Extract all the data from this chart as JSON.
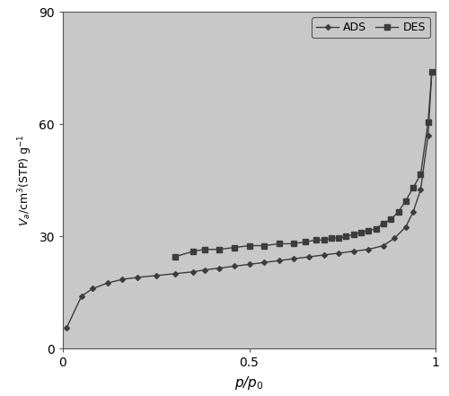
{
  "title": "",
  "xlabel": "$p$/$p_0$",
  "ylabel": "$V_a$/cm$^3$(STP) g$^{-1}$",
  "xlim": [
    0,
    1.0
  ],
  "ylim": [
    0,
    90
  ],
  "yticks": [
    0,
    30,
    60,
    90
  ],
  "xticks": [
    0,
    0.5,
    1
  ],
  "xtick_labels": [
    "0",
    "0.5",
    "1"
  ],
  "background_color": "#c8c8c8",
  "outer_color": "#ffffff",
  "line_color": "#3c3c3c",
  "ads_marker": "D",
  "des_marker": "s",
  "marker_size_ads": 3,
  "marker_size_des": 4,
  "ads_x": [
    0.01,
    0.05,
    0.08,
    0.12,
    0.16,
    0.2,
    0.25,
    0.3,
    0.35,
    0.38,
    0.42,
    0.46,
    0.5,
    0.54,
    0.58,
    0.62,
    0.66,
    0.7,
    0.74,
    0.78,
    0.82,
    0.86,
    0.89,
    0.92,
    0.94,
    0.96,
    0.98,
    0.99
  ],
  "ads_y": [
    5.5,
    14.0,
    16.0,
    17.5,
    18.5,
    19.0,
    19.5,
    20.0,
    20.5,
    21.0,
    21.5,
    22.0,
    22.5,
    23.0,
    23.5,
    24.0,
    24.5,
    25.0,
    25.5,
    26.0,
    26.5,
    27.5,
    29.5,
    32.5,
    36.5,
    42.5,
    57.0,
    74.0
  ],
  "des_x": [
    0.99,
    0.98,
    0.96,
    0.94,
    0.92,
    0.9,
    0.88,
    0.86,
    0.84,
    0.82,
    0.8,
    0.78,
    0.76,
    0.74,
    0.72,
    0.7,
    0.68,
    0.65,
    0.62,
    0.58,
    0.54,
    0.5,
    0.46,
    0.42,
    0.38,
    0.35,
    0.3
  ],
  "des_y": [
    74.0,
    60.5,
    46.5,
    43.0,
    39.5,
    36.5,
    34.5,
    33.5,
    32.0,
    31.5,
    31.0,
    30.5,
    30.0,
    29.5,
    29.5,
    29.0,
    29.0,
    28.5,
    28.0,
    28.0,
    27.5,
    27.5,
    27.0,
    26.5,
    26.5,
    26.0,
    24.5
  ],
  "legend_fontsize": 9,
  "tick_fontsize": 10,
  "label_fontsize": 11
}
